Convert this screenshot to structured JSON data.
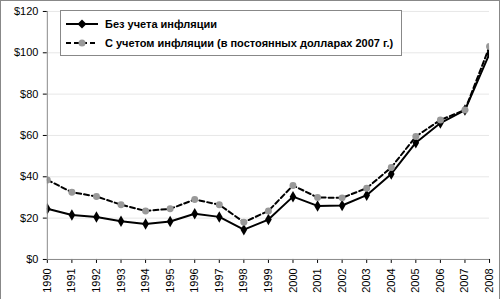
{
  "chart_data": {
    "type": "line",
    "x": [
      1990,
      1991,
      1992,
      1993,
      1994,
      1995,
      1996,
      1997,
      1998,
      1999,
      2000,
      2001,
      2002,
      2003,
      2004,
      2005,
      2006,
      2007,
      2008
    ],
    "series": [
      {
        "name": "Без учета инфляции",
        "color": "#000000",
        "marker": "diamond",
        "line_style": "solid",
        "values": [
          24.5,
          21.5,
          20.5,
          18.5,
          17.2,
          18.4,
          22.1,
          20.6,
          14.4,
          19.3,
          30.4,
          25.9,
          26.1,
          31.1,
          41.4,
          56.5,
          66.0,
          72.3,
          99.6
        ]
      },
      {
        "name": "С учетом инфляции (в постоянных долларах 2007 г.)",
        "color": "#000000",
        "marker": "circle",
        "line_style": "dashed",
        "values": [
          38.5,
          32.5,
          30.5,
          26.5,
          23.5,
          24.5,
          29.0,
          26.5,
          18.0,
          23.5,
          35.8,
          30.0,
          29.8,
          34.5,
          44.5,
          59.5,
          67.5,
          72.3,
          103.0
        ]
      }
    ],
    "xlim": [
      1990,
      2008
    ],
    "xticks": [
      1990,
      1991,
      1992,
      1993,
      1994,
      1995,
      1996,
      1997,
      1998,
      1999,
      2000,
      2001,
      2002,
      2003,
      2004,
      2005,
      2006,
      2007,
      2008
    ],
    "ylim": [
      0,
      120
    ],
    "yticks": [
      {
        "value": 0,
        "label": "$0"
      },
      {
        "value": 20,
        "label": "$20"
      },
      {
        "value": 40,
        "label": "$40"
      },
      {
        "value": 60,
        "label": "$60"
      },
      {
        "value": 80,
        "label": "$80"
      },
      {
        "value": 100,
        "label": "$100"
      },
      {
        "value": 120,
        "label": "$120"
      }
    ],
    "grid": true,
    "legend": "top-left"
  }
}
